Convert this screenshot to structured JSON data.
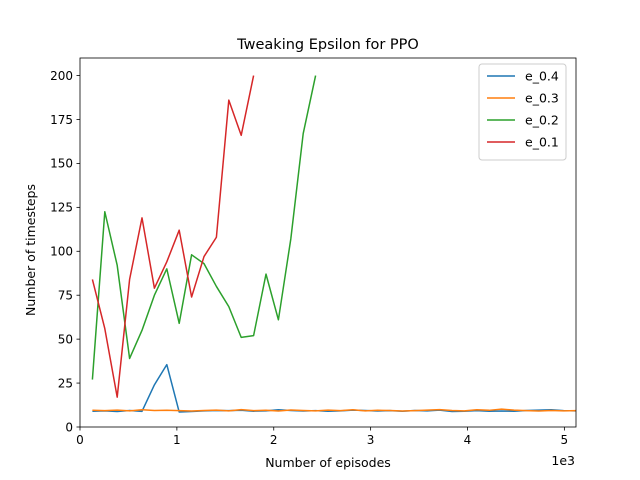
{
  "chart_data": {
    "type": "line",
    "title": "Tweaking Epsilon for PPO",
    "xlabel": "Number of episodes",
    "ylabel": "Number of timesteps",
    "x_offset_label": "1e3",
    "xlim": [
      0,
      5.12
    ],
    "ylim": [
      0,
      210
    ],
    "xticks": [
      0,
      1,
      2,
      3,
      4,
      5
    ],
    "xtick_labels": [
      "0",
      "1",
      "2",
      "3",
      "4",
      "5"
    ],
    "yticks": [
      0,
      25,
      50,
      75,
      100,
      125,
      150,
      175,
      200
    ],
    "ytick_labels": [
      "0",
      "25",
      "50",
      "75",
      "100",
      "125",
      "150",
      "175",
      "200"
    ],
    "grid": false,
    "legend_position": "top-right",
    "series": [
      {
        "name": "e_0.4",
        "color": "#1f77b4",
        "x": [
          0.128,
          0.256,
          0.384,
          0.512,
          0.64,
          0.768,
          0.896,
          1.024,
          1.152,
          1.28,
          1.408,
          1.536,
          1.664,
          1.792,
          1.92,
          2.048,
          2.176,
          2.304,
          2.432,
          2.56,
          2.688,
          2.816,
          2.944,
          3.072,
          3.2,
          3.328,
          3.456,
          3.584,
          3.712,
          3.84,
          3.968,
          4.096,
          4.224,
          4.352,
          4.48,
          4.608,
          4.736,
          4.864,
          4.992,
          5.12
        ],
        "y": [
          9,
          9.2,
          8.8,
          9.4,
          8.9,
          24,
          35.5,
          8.5,
          8.8,
          9.2,
          9.4,
          9.3,
          9.5,
          9.0,
          9.2,
          9.8,
          9.4,
          9.1,
          9.3,
          9.0,
          9.2,
          9.6,
          9.4,
          9.1,
          9.3,
          9.0,
          9.4,
          9.2,
          9.6,
          8.8,
          9.0,
          9.3,
          9.0,
          9.1,
          9.0,
          9.4,
          9.6,
          9.8,
          9.3,
          9.2
        ]
      },
      {
        "name": "e_0.3",
        "color": "#ff7f0e",
        "x": [
          0.128,
          0.256,
          0.384,
          0.512,
          0.64,
          0.768,
          0.896,
          1.024,
          1.152,
          1.28,
          1.408,
          1.536,
          1.664,
          1.792,
          1.92,
          2.048,
          2.176,
          2.304,
          2.432,
          2.56,
          2.688,
          2.816,
          2.944,
          3.072,
          3.2,
          3.328,
          3.456,
          3.584,
          3.712,
          3.84,
          3.968,
          4.096,
          4.224,
          4.352,
          4.48,
          4.608,
          4.736,
          4.864,
          4.992,
          5.12
        ],
        "y": [
          9.5,
          9.3,
          9.6,
          9.2,
          9.8,
          9.4,
          9.5,
          9.3,
          9.1,
          9.4,
          9.6,
          9.2,
          9.9,
          9.3,
          9.5,
          9.1,
          9.7,
          9.4,
          9.2,
          9.6,
          9.3,
          9.8,
          9.2,
          9.5,
          9.4,
          9.1,
          9.3,
          9.6,
          9.9,
          9.4,
          9.2,
          9.8,
          9.5,
          10.2,
          9.6,
          9.3,
          9.1,
          9.4,
          9.2,
          9.3
        ]
      },
      {
        "name": "e_0.2",
        "color": "#2ca02c",
        "x": [
          0.128,
          0.256,
          0.384,
          0.512,
          0.64,
          0.768,
          0.896,
          1.024,
          1.152,
          1.28,
          1.408,
          1.536,
          1.664,
          1.792,
          1.92,
          2.048,
          2.176,
          2.304,
          2.432
        ],
        "y": [
          27,
          122.5,
          92,
          39,
          55,
          75,
          90,
          59,
          98,
          93,
          80,
          68.5,
          51,
          52,
          87,
          61,
          107,
          167,
          200
        ]
      },
      {
        "name": "e_0.1",
        "color": "#d62728",
        "x": [
          0.128,
          0.256,
          0.384,
          0.512,
          0.64,
          0.768,
          0.896,
          1.024,
          1.152,
          1.28,
          1.408,
          1.536,
          1.664,
          1.792
        ],
        "y": [
          84,
          56,
          17,
          84,
          119,
          79,
          94,
          112,
          74,
          97,
          108,
          186,
          166,
          200
        ]
      }
    ]
  }
}
